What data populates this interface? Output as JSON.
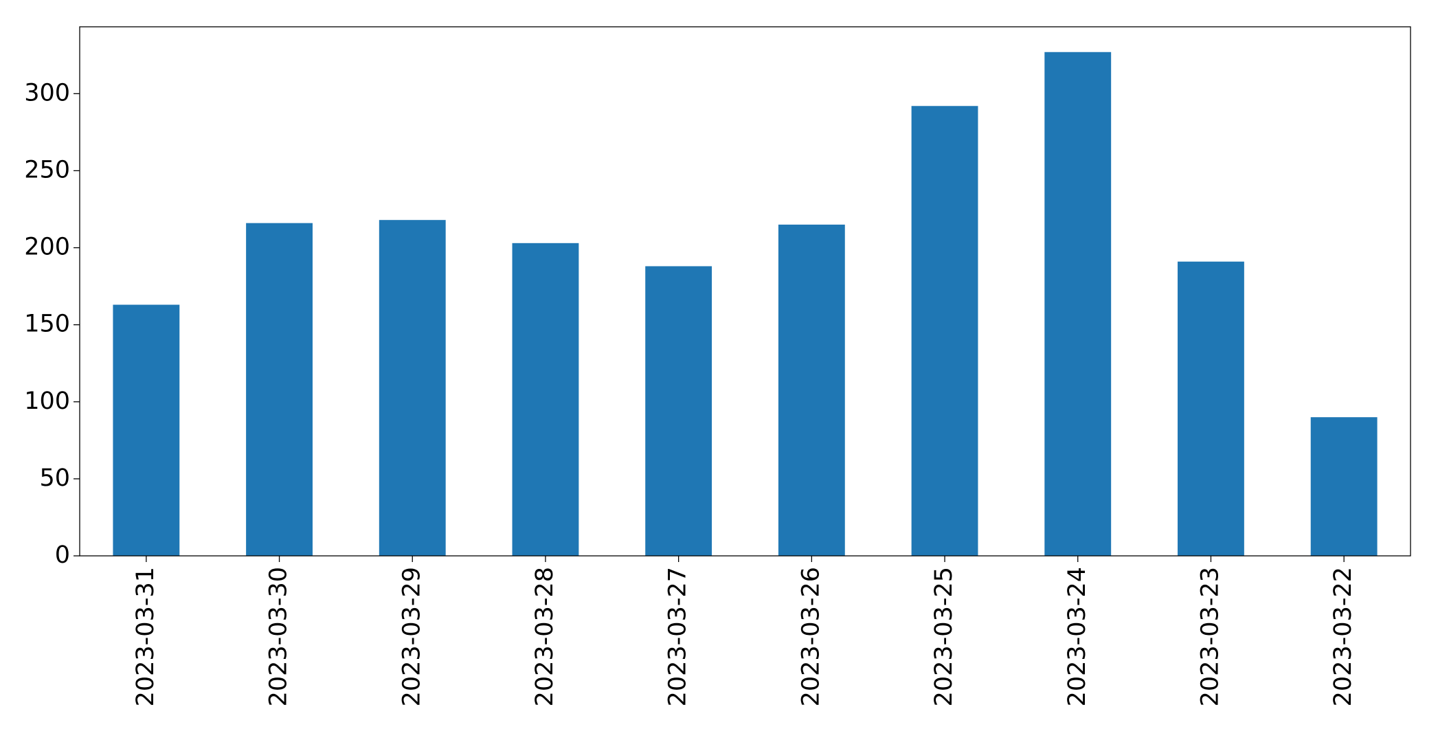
{
  "chart_data": {
    "type": "bar",
    "categories": [
      "2023-03-31",
      "2023-03-30",
      "2023-03-29",
      "2023-03-28",
      "2023-03-27",
      "2023-03-26",
      "2023-03-25",
      "2023-03-24",
      "2023-03-23",
      "2023-03-22"
    ],
    "values": [
      163,
      216,
      218,
      203,
      188,
      215,
      292,
      327,
      191,
      90
    ],
    "color": "#1f77b4",
    "ylim": [
      0,
      343.4
    ],
    "yticks": [
      0,
      50,
      100,
      150,
      200,
      250,
      300
    ],
    "grid": false
  }
}
